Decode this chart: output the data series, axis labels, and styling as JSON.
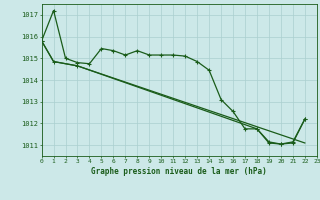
{
  "bg_color": "#cce8e8",
  "grid_color": "#aacfcf",
  "line_color": "#1a5c1a",
  "title": "Graphe pression niveau de la mer (hPa)",
  "xlim": [
    0,
    23
  ],
  "ylim": [
    1010.5,
    1017.5
  ],
  "yticks": [
    1011,
    1012,
    1013,
    1014,
    1015,
    1016,
    1017
  ],
  "xticks": [
    0,
    1,
    2,
    3,
    4,
    5,
    6,
    7,
    8,
    9,
    10,
    11,
    12,
    13,
    14,
    15,
    16,
    17,
    18,
    19,
    20,
    21,
    22,
    23
  ],
  "series1_x": [
    0,
    1,
    2,
    3,
    4,
    5,
    6,
    7,
    8,
    9,
    10,
    11,
    12,
    13,
    14,
    15,
    16,
    17,
    18,
    19,
    20,
    21,
    22
  ],
  "series1_y": [
    1015.8,
    1017.2,
    1015.0,
    1014.8,
    1014.75,
    1015.45,
    1015.35,
    1015.15,
    1015.35,
    1015.15,
    1015.15,
    1015.15,
    1015.1,
    1014.85,
    1014.45,
    1013.1,
    1012.55,
    1011.75,
    1011.75,
    1011.1,
    1011.05,
    1011.1,
    1012.2
  ],
  "series2_x": [
    0,
    1,
    3,
    22
  ],
  "series2_y": [
    1015.8,
    1014.85,
    1014.65,
    1011.1
  ],
  "series3_x": [
    0,
    1,
    3,
    18,
    19,
    20,
    21,
    22
  ],
  "series3_y": [
    1015.8,
    1014.85,
    1014.65,
    1011.75,
    1011.15,
    1011.05,
    1011.15,
    1012.2
  ]
}
